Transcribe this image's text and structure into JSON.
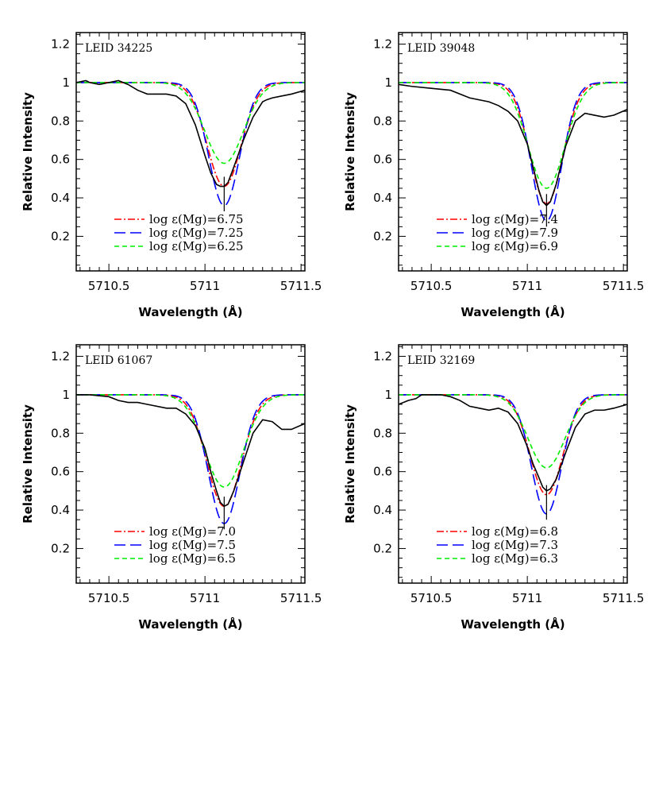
{
  "chart_data": [
    {
      "type": "line",
      "panel_label": "LEID 34225",
      "xlabel": "Wavelength (Å)",
      "ylabel": "Relative Intensity",
      "xlim": [
        5710.33,
        5711.52
      ],
      "ylim": [
        0.02,
        1.26
      ],
      "xticks": [
        5710.5,
        5711,
        5711.5
      ],
      "xtick_labels": [
        "5710.5",
        "5711",
        "5711.5"
      ],
      "yticks": [
        0.2,
        0.4,
        0.6,
        0.8,
        1,
        1.2
      ],
      "ytick_labels": [
        "0.2",
        "0.4",
        "0.6",
        "0.8",
        "1",
        "1.2"
      ],
      "legend_position": "lower-left",
      "models": [
        {
          "name": "log ε(Mg)=6.75",
          "color": "#ff0000",
          "dash": "dashdot",
          "center": 5711.1,
          "sigma": 0.088,
          "depth": 0.54
        },
        {
          "name": "log ε(Mg)=7.25",
          "color": "#0000ff",
          "dash": "longdash",
          "center": 5711.1,
          "sigma": 0.08,
          "depth": 0.64
        },
        {
          "name": "log ε(Mg)=6.25",
          "color": "#00ee00",
          "dash": "shortdash",
          "center": 5711.1,
          "sigma": 0.1,
          "depth": 0.42
        }
      ],
      "observed": {
        "x": [
          5710.33,
          5710.38,
          5710.4,
          5710.45,
          5710.5,
          5710.55,
          5710.6,
          5710.65,
          5710.7,
          5710.75,
          5710.8,
          5710.85,
          5710.9,
          5710.95,
          5711.0,
          5711.03,
          5711.06,
          5711.08,
          5711.1,
          5711.12,
          5711.15,
          5711.2,
          5711.25,
          5711.3,
          5711.32,
          5711.35,
          5711.4,
          5711.45,
          5711.52
        ],
        "y": [
          1.0,
          1.01,
          1.0,
          0.99,
          1.0,
          1.01,
          0.99,
          0.96,
          0.94,
          0.94,
          0.94,
          0.93,
          0.89,
          0.78,
          0.62,
          0.53,
          0.47,
          0.46,
          0.46,
          0.48,
          0.56,
          0.7,
          0.82,
          0.9,
          0.91,
          0.92,
          0.93,
          0.94,
          0.96
        ]
      }
    },
    {
      "type": "line",
      "panel_label": "LEID 39048",
      "xlabel": "Wavelength (Å)",
      "ylabel": "Relative Intensity",
      "xlim": [
        5710.33,
        5711.52
      ],
      "ylim": [
        0.02,
        1.26
      ],
      "xticks": [
        5710.5,
        5711,
        5711.5
      ],
      "xtick_labels": [
        "5710.5",
        "5711",
        "5711.5"
      ],
      "yticks": [
        0.2,
        0.4,
        0.6,
        0.8,
        1,
        1.2
      ],
      "ytick_labels": [
        "0.2",
        "0.4",
        "0.6",
        "0.8",
        "1",
        "1.2"
      ],
      "legend_position": "lower-left",
      "models": [
        {
          "name": "log ε(Mg)=7.4",
          "color": "#ff0000",
          "dash": "dashdot",
          "center": 5711.1,
          "sigma": 0.085,
          "depth": 0.63
        },
        {
          "name": "log ε(Mg)=7.9",
          "color": "#0000ff",
          "dash": "longdash",
          "center": 5711.1,
          "sigma": 0.078,
          "depth": 0.72
        },
        {
          "name": "log ε(Mg)=6.9",
          "color": "#00ee00",
          "dash": "shortdash",
          "center": 5711.1,
          "sigma": 0.095,
          "depth": 0.55
        }
      ],
      "observed": {
        "x": [
          5710.33,
          5710.4,
          5710.5,
          5710.6,
          5710.7,
          5710.8,
          5710.85,
          5710.9,
          5710.95,
          5711.0,
          5711.03,
          5711.06,
          5711.08,
          5711.1,
          5711.12,
          5711.15,
          5711.2,
          5711.25,
          5711.3,
          5711.35,
          5711.4,
          5711.45,
          5711.52
        ],
        "y": [
          0.99,
          0.98,
          0.97,
          0.96,
          0.92,
          0.9,
          0.88,
          0.85,
          0.8,
          0.68,
          0.56,
          0.44,
          0.38,
          0.36,
          0.38,
          0.47,
          0.67,
          0.8,
          0.84,
          0.83,
          0.82,
          0.83,
          0.86
        ]
      }
    },
    {
      "type": "line",
      "panel_label": "LEID 61067",
      "xlabel": "Wavelength (Å)",
      "ylabel": "Relative Intensity",
      "xlim": [
        5710.33,
        5711.52
      ],
      "ylim": [
        0.02,
        1.26
      ],
      "xticks": [
        5710.5,
        5711,
        5711.5
      ],
      "xtick_labels": [
        "5710.5",
        "5711",
        "5711.5"
      ],
      "yticks": [
        0.2,
        0.4,
        0.6,
        0.8,
        1,
        1.2
      ],
      "ytick_labels": [
        "0.2",
        "0.4",
        "0.6",
        "0.8",
        "1",
        "1.2"
      ],
      "legend_position": "lower-left",
      "models": [
        {
          "name": "log ε(Mg)=7.0",
          "color": "#ff0000",
          "dash": "dashdot",
          "center": 5711.1,
          "sigma": 0.09,
          "depth": 0.58
        },
        {
          "name": "log ε(Mg)=7.5",
          "color": "#0000ff",
          "dash": "longdash",
          "center": 5711.1,
          "sigma": 0.082,
          "depth": 0.67
        },
        {
          "name": "log ε(Mg)=6.5",
          "color": "#00ee00",
          "dash": "shortdash",
          "center": 5711.1,
          "sigma": 0.1,
          "depth": 0.48
        }
      ],
      "observed": {
        "x": [
          5710.33,
          5710.4,
          5710.5,
          5710.55,
          5710.6,
          5710.65,
          5710.7,
          5710.8,
          5710.85,
          5710.9,
          5710.95,
          5711.0,
          5711.03,
          5711.06,
          5711.08,
          5711.1,
          5711.12,
          5711.15,
          5711.2,
          5711.25,
          5711.3,
          5711.35,
          5711.4,
          5711.45,
          5711.52
        ],
        "y": [
          1.0,
          1.0,
          0.99,
          0.97,
          0.96,
          0.96,
          0.95,
          0.93,
          0.93,
          0.9,
          0.84,
          0.72,
          0.6,
          0.5,
          0.44,
          0.42,
          0.43,
          0.5,
          0.65,
          0.8,
          0.87,
          0.86,
          0.82,
          0.82,
          0.85
        ]
      }
    },
    {
      "type": "line",
      "panel_label": "LEID 32169",
      "xlabel": "Wavelength (Å)",
      "ylabel": "Relative Intensity",
      "xlim": [
        5710.33,
        5711.52
      ],
      "ylim": [
        0.02,
        1.26
      ],
      "xticks": [
        5710.5,
        5711,
        5711.5
      ],
      "xtick_labels": [
        "5710.5",
        "5711",
        "5711.5"
      ],
      "yticks": [
        0.2,
        0.4,
        0.6,
        0.8,
        1,
        1.2
      ],
      "ytick_labels": [
        "0.2",
        "0.4",
        "0.6",
        "0.8",
        "1",
        "1.2"
      ],
      "legend_position": "lower-left",
      "models": [
        {
          "name": "log ε(Mg)=6.8",
          "color": "#ff0000",
          "dash": "dashdot",
          "center": 5711.1,
          "sigma": 0.085,
          "depth": 0.52
        },
        {
          "name": "log ε(Mg)=7.3",
          "color": "#0000ff",
          "dash": "longdash",
          "center": 5711.1,
          "sigma": 0.078,
          "depth": 0.62
        },
        {
          "name": "log ε(Mg)=6.3",
          "color": "#00ee00",
          "dash": "shortdash",
          "center": 5711.1,
          "sigma": 0.095,
          "depth": 0.38
        }
      ],
      "observed": {
        "x": [
          5710.33,
          5710.38,
          5710.42,
          5710.45,
          5710.5,
          5710.55,
          5710.6,
          5710.65,
          5710.7,
          5710.75,
          5710.8,
          5710.85,
          5710.9,
          5710.95,
          5711.0,
          5711.03,
          5711.06,
          5711.08,
          5711.1,
          5711.12,
          5711.15,
          5711.2,
          5711.25,
          5711.3,
          5711.35,
          5711.4,
          5711.45,
          5711.52
        ],
        "y": [
          0.95,
          0.97,
          0.98,
          1.0,
          1.0,
          1.0,
          0.99,
          0.97,
          0.94,
          0.93,
          0.92,
          0.93,
          0.91,
          0.85,
          0.73,
          0.64,
          0.57,
          0.52,
          0.5,
          0.51,
          0.56,
          0.7,
          0.83,
          0.9,
          0.92,
          0.92,
          0.93,
          0.95
        ]
      }
    }
  ]
}
